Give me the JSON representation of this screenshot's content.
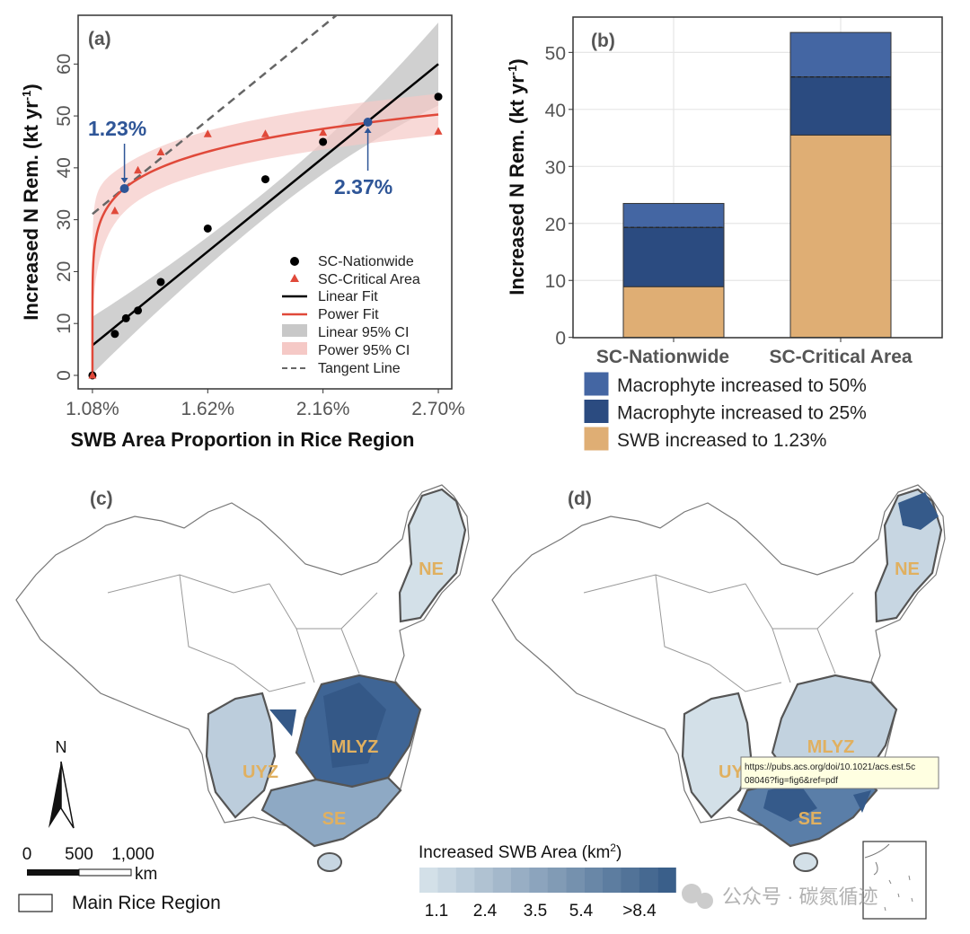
{
  "chart_data": [
    {
      "panel": "(a)",
      "type": "scatter",
      "xlabel": "SWB Area Proportion in Rice Region",
      "ylabel": "Increased N Rem. (kt yr-1)",
      "ylabel_parts": {
        "main": "Increased N Rem. (kt yr",
        "sup": "-1",
        "end": ")"
      },
      "xlim": [
        1.013,
        2.763
      ],
      "ylim": [
        -2.6,
        69.4
      ],
      "xticks": [
        1.08,
        1.62,
        2.16,
        2.7
      ],
      "xtick_labels": [
        "1.08%",
        "1.62%",
        "2.16%",
        "2.70%"
      ],
      "yticks": [
        0,
        10,
        20,
        30,
        40,
        50,
        60
      ],
      "ytick_labels": [
        "0",
        "10",
        "20",
        "30",
        "40",
        "50",
        "60"
      ],
      "series": [
        {
          "name": "SC-Nationwide",
          "marker": "circle",
          "color": "#000000",
          "x": [
            1.08,
            1.185,
            1.237,
            1.293,
            1.4,
            1.62,
            1.89,
            2.16,
            2.7
          ],
          "y": [
            0,
            8,
            11,
            12.5,
            18,
            28.3,
            37.8,
            45,
            53.7
          ]
        },
        {
          "name": "SC-Critical Area",
          "marker": "triangle",
          "color": "#e0493a",
          "x": [
            1.08,
            1.185,
            1.293,
            1.4,
            1.62,
            1.89,
            2.16,
            2.7
          ],
          "y": [
            0,
            31.7,
            39.5,
            43,
            46.5,
            46.5,
            46.8,
            47
          ]
        }
      ],
      "linear_fit": {
        "name": "Linear Fit",
        "x": [
          1.08,
          2.7
        ],
        "y": [
          5.8,
          60
        ],
        "color": "#000000"
      },
      "power_fit": {
        "name": "Power Fit",
        "a": 47.0,
        "b": 0.14,
        "x0": 1.08,
        "color": "#e0493a"
      },
      "linear_ci": {
        "name": "Linear 95% CI",
        "x": [
          1.08,
          1.89,
          2.7
        ],
        "half_width": [
          5.5,
          2.5,
          8
        ],
        "color": "#c8c8c8"
      },
      "power_ci": {
        "name": "Power 95% CI",
        "half_width": 4,
        "color": "#f5c9c6"
      },
      "tangent": {
        "name": "Tangent Line",
        "x": [
          1.08,
          2.3
        ],
        "y": [
          31.1,
          72
        ],
        "color": "#666666"
      },
      "annotations": [
        {
          "label": "1.23%",
          "x": 1.23,
          "y": 36
        },
        {
          "label": "2.37%",
          "x": 2.37,
          "y": 48.8
        }
      ],
      "annotation_color": "#2e5597",
      "legend_position": "bottom-right"
    },
    {
      "panel": "(b)",
      "type": "bar",
      "stacked": true,
      "ylabel_parts": {
        "main": "Increased N Rem. (kt yr",
        "sup": "-1",
        "end": ")"
      },
      "categories": [
        "SC-Nationwide",
        "SC-Critical Area"
      ],
      "ylim": [
        0,
        56.2
      ],
      "yticks": [
        0,
        10,
        20,
        30,
        40,
        50
      ],
      "ytick_labels": [
        "0",
        "10",
        "20",
        "30",
        "40",
        "50"
      ],
      "series": [
        {
          "name": "SWB increased to 1.23%",
          "color": "#dfae74",
          "values": [
            8.9,
            35.5
          ]
        },
        {
          "name": "Macrophyte increased to 25%",
          "color": "#2b4b80",
          "values": [
            10.4,
            10.2
          ]
        },
        {
          "name": "Macrophyte increased to 50%",
          "color": "#4466a3",
          "values": [
            4.2,
            7.8
          ]
        }
      ],
      "legend": [
        "Macrophyte increased to 50%",
        "Macrophyte increased to 25%",
        "SWB increased to 1.23%"
      ],
      "grid": true
    }
  ],
  "maps": {
    "panel_c": "(c)",
    "panel_d": "(d)",
    "regions": [
      "NE",
      "MLYZ",
      "UYZ",
      "SE"
    ],
    "north_label": "N",
    "scale_labels": [
      "0",
      "500",
      "1,000"
    ],
    "scale_unit": "km",
    "region_legend": "Main Rice Region",
    "colorbar_title": "Increased SWB Area (km",
    "colorbar_title_sup": "2",
    "colorbar_title_end": ")",
    "colorbar_ticks": [
      "1.1",
      "2.4",
      "3.5",
      "5.4",
      ">8.4"
    ],
    "colorbar_from": "#d3e0e8",
    "colorbar_to": "#3a5f8a"
  },
  "tooltip": {
    "line1": "https://pubs.acs.org/doi/10.1021/acs.est.5c",
    "line2": "08046?fig=fig6&ref=pdf"
  },
  "watermark": "公众号 · 碳氮循迹"
}
